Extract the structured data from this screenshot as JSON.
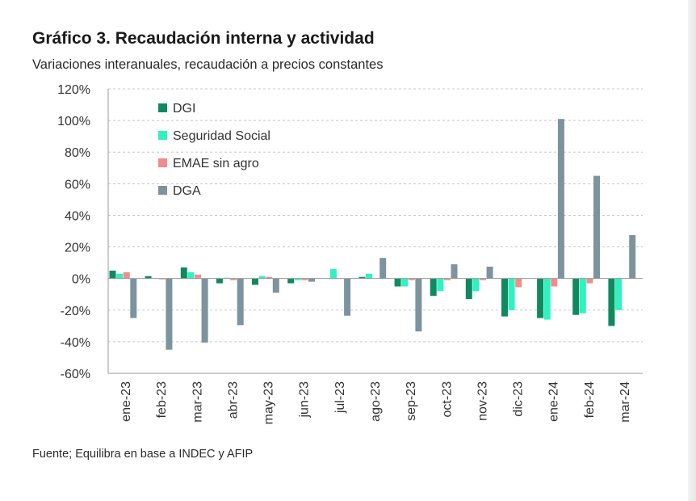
{
  "title": "Gráfico 3. Recaudación interna y actividad",
  "subtitle": "Variaciones interanuales, recaudación a precios constantes",
  "source": "Fuente; Equilibra en base a INDEC y AFIP",
  "chart_data": {
    "type": "bar",
    "categories": [
      "ene-23",
      "feb-23",
      "mar-23",
      "abr-23",
      "may-23",
      "jun-23",
      "jul-23",
      "ago-23",
      "sep-23",
      "oct-23",
      "nov-23",
      "dic-23",
      "ene-24",
      "feb-24",
      "mar-24"
    ],
    "ylim": [
      -60,
      120
    ],
    "yticks": [
      -60,
      -40,
      -20,
      0,
      20,
      40,
      60,
      80,
      100,
      120
    ],
    "ytick_labels": [
      "-60%",
      "-40%",
      "-20%",
      "0%",
      "20%",
      "40%",
      "60%",
      "80%",
      "100%",
      "120%"
    ],
    "grid": "horizontal dashed",
    "legend_position": "top-left",
    "series": [
      {
        "name": "DGI",
        "color": "#0f8a5f",
        "values": [
          5,
          1.5,
          7,
          -3,
          -4,
          -3,
          0,
          1,
          -5,
          -11,
          -13,
          -24,
          -25,
          -23,
          -30
        ]
      },
      {
        "name": "Seguridad Social",
        "color": "#2ef2c0",
        "values": [
          3,
          0,
          4,
          0.5,
          1.5,
          -1,
          6,
          3,
          -5,
          -8,
          -8,
          -20,
          -26,
          -22,
          -20
        ]
      },
      {
        "name": "EMAE sin agro",
        "color": "#f28c8c",
        "values": [
          4,
          -0.5,
          2.5,
          -1,
          1,
          -1,
          0,
          0,
          -1,
          -1,
          -1,
          -5.5,
          -5,
          -3,
          0
        ]
      },
      {
        "name": "DGA",
        "color": "#7d949f",
        "values": [
          -25,
          -45,
          -40.5,
          -29.5,
          -9,
          -2,
          -23.5,
          13,
          -33.5,
          9,
          7.5,
          0,
          101,
          65,
          27.5
        ]
      }
    ]
  }
}
